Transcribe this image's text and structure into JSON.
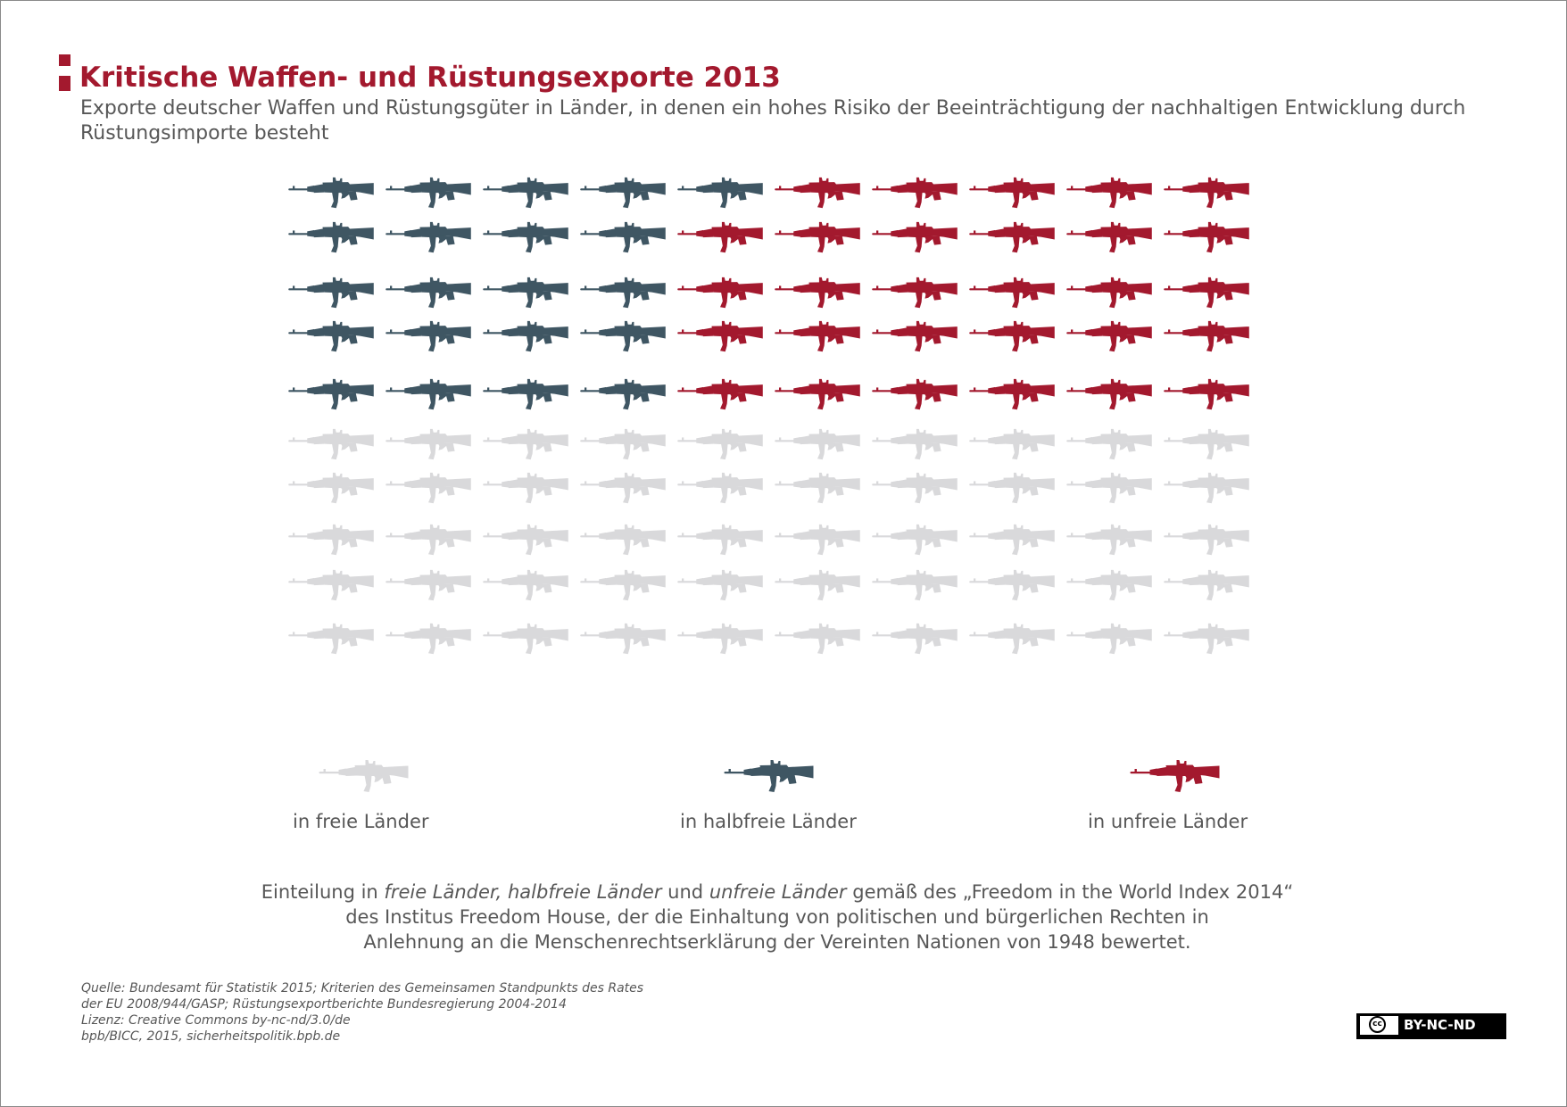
{
  "title": "Kritische Waffen- und Rüstungsexporte 2013",
  "subtitle": "Exporte deutscher Waffen und Rüstungsgüter in Länder, in denen ein hohes Risiko der Beeinträchtigung der nachhaltigen Entwicklung durch Rüstungsimporte besteht",
  "colors": {
    "accent": "#a3192e",
    "frei": "#d9d9db",
    "halbfrei": "#3f5663",
    "unfrei": "#a3192e",
    "text": "#575757"
  },
  "icon": "rifle-icon",
  "chart_data": {
    "type": "pictogram",
    "title": "Kritische Waffen- und Rüstungsexporte 2013",
    "total_icons": 100,
    "grid": {
      "rows": 10,
      "columns": 10
    },
    "series": [
      {
        "key": "frei",
        "name": "in freie Länder",
        "count": 50,
        "color": "#d9d9db"
      },
      {
        "key": "halbfrei",
        "name": "in halbfreie Länder",
        "count": 21,
        "color": "#3f5663"
      },
      {
        "key": "unfrei",
        "name": "in unfreie Länder",
        "count": 29,
        "color": "#a3192e"
      }
    ],
    "rows": [
      [
        "halbfrei",
        "halbfrei",
        "halbfrei",
        "halbfrei",
        "halbfrei",
        "unfrei",
        "unfrei",
        "unfrei",
        "unfrei",
        "unfrei"
      ],
      [
        "halbfrei",
        "halbfrei",
        "halbfrei",
        "halbfrei",
        "unfrei",
        "unfrei",
        "unfrei",
        "unfrei",
        "unfrei",
        "unfrei"
      ],
      [
        "halbfrei",
        "halbfrei",
        "halbfrei",
        "halbfrei",
        "unfrei",
        "unfrei",
        "unfrei",
        "unfrei",
        "unfrei",
        "unfrei"
      ],
      [
        "halbfrei",
        "halbfrei",
        "halbfrei",
        "halbfrei",
        "unfrei",
        "unfrei",
        "unfrei",
        "unfrei",
        "unfrei",
        "unfrei"
      ],
      [
        "halbfrei",
        "halbfrei",
        "halbfrei",
        "halbfrei",
        "unfrei",
        "unfrei",
        "unfrei",
        "unfrei",
        "unfrei",
        "unfrei"
      ],
      [
        "frei",
        "frei",
        "frei",
        "frei",
        "frei",
        "frei",
        "frei",
        "frei",
        "frei",
        "frei"
      ],
      [
        "frei",
        "frei",
        "frei",
        "frei",
        "frei",
        "frei",
        "frei",
        "frei",
        "frei",
        "frei"
      ],
      [
        "frei",
        "frei",
        "frei",
        "frei",
        "frei",
        "frei",
        "frei",
        "frei",
        "frei",
        "frei"
      ],
      [
        "frei",
        "frei",
        "frei",
        "frei",
        "frei",
        "frei",
        "frei",
        "frei",
        "frei",
        "frei"
      ],
      [
        "frei",
        "frei",
        "frei",
        "frei",
        "frei",
        "frei",
        "frei",
        "frei",
        "frei",
        "frei"
      ]
    ],
    "legend": [
      {
        "key": "frei",
        "label": "in freie Länder"
      },
      {
        "key": "halbfrei",
        "label": "in halbfreie Länder"
      },
      {
        "key": "unfrei",
        "label": "in unfreie Länder"
      }
    ]
  },
  "note": {
    "prefix": "Einteilung in ",
    "term_frei": "freie Länder,",
    "term_halbfrei": "halbfreie Länder",
    "und": "und",
    "term_unfrei": "unfreie Länder",
    "rest_line1": "gemäß des „Freedom in the World Index 2014“",
    "line2": "des Institus Freedom House, der die Einhaltung von politischen und bürgerlichen Rechten in",
    "line3": "Anlehnung an die Menschenrechtserklärung der Vereinten Nationen von 1948 bewertet."
  },
  "source": {
    "line1": "Quelle: Bundesamt für Statistik 2015; Kriterien des Gemeinsamen Standpunkts des Rates",
    "line2": "der EU 2008/944/GASP; Rüstungsexportberichte Bundesregierung 2004-2014",
    "line3": "Lizenz: Creative Commons by-nc-nd/3.0/de",
    "line4": "bpb/BICC, 2015, sicherheitspolitik.bpb.de"
  },
  "license": {
    "cc": "cc",
    "text": "BY-NC-ND"
  }
}
